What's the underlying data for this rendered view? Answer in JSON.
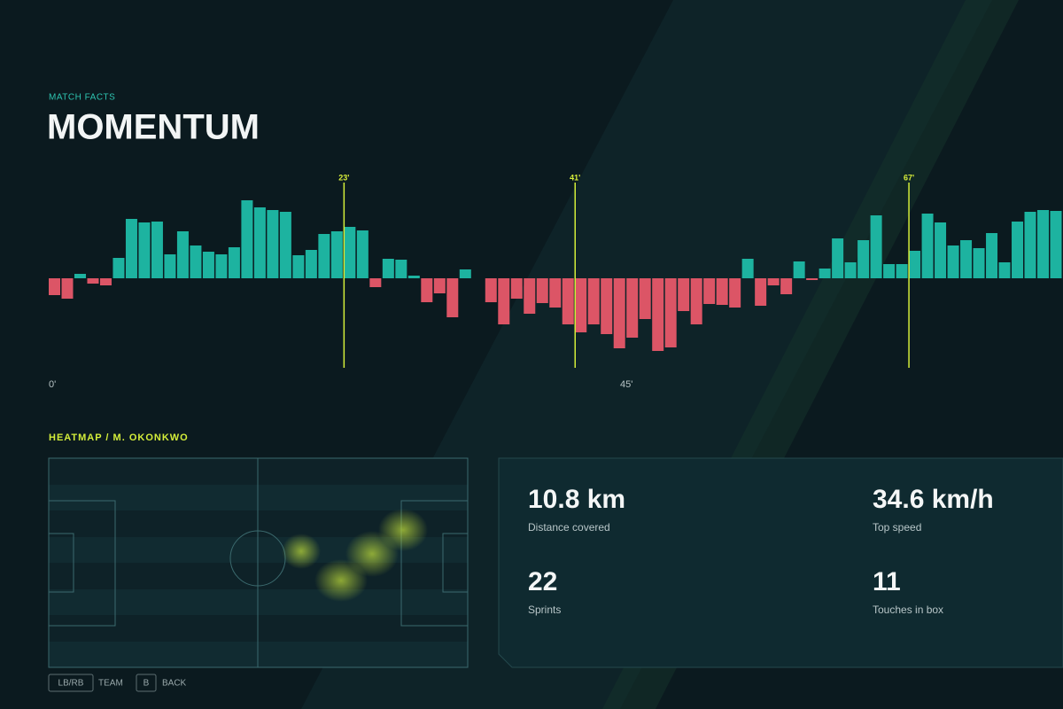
{
  "header": {
    "kicker": "MATCH FACTS",
    "title": "MOMENTUM"
  },
  "chart_data": {
    "type": "bar",
    "x": [
      0,
      1,
      2,
      3,
      4,
      5,
      6,
      7,
      8,
      9,
      10,
      11,
      12,
      13,
      14,
      15,
      16,
      17,
      18,
      19,
      20,
      21,
      22,
      23,
      24,
      25,
      26,
      27,
      28,
      29,
      30,
      31,
      32,
      33,
      34,
      35,
      36,
      37,
      38,
      39,
      40,
      41,
      42,
      43,
      44,
      45,
      46,
      47,
      48,
      49,
      50,
      51,
      52,
      53,
      54,
      55,
      56,
      57,
      58,
      59,
      60,
      61,
      62,
      63,
      64,
      65,
      66,
      67,
      68,
      69,
      70,
      71,
      72,
      73,
      74,
      75,
      76,
      77,
      78
    ],
    "values": [
      -19,
      -23,
      5,
      -6,
      -8,
      23,
      67,
      63,
      64,
      27,
      53,
      37,
      30,
      27,
      35,
      88,
      80,
      77,
      75,
      26,
      32,
      50,
      53,
      58,
      54,
      -10,
      22,
      21,
      3,
      -27,
      -17,
      -44,
      10,
      0,
      -27,
      -52,
      -23,
      -40,
      -28,
      -33,
      -52,
      -61,
      -52,
      -63,
      -79,
      -67,
      -46,
      -82,
      -78,
      -37,
      -52,
      -29,
      -30,
      -33,
      22,
      -31,
      -8,
      -18,
      19,
      -2,
      11,
      45,
      18,
      43,
      71,
      16,
      16,
      31,
      73,
      63,
      37,
      43,
      34,
      51,
      18,
      64,
      75,
      77,
      76
    ],
    "positive_color": "#1db3a0",
    "negative_color": "#dc5566",
    "xlim": [
      0,
      79
    ],
    "ylim": [
      -100,
      100
    ],
    "xticks": [
      {
        "value": 0,
        "label": "0'"
      },
      {
        "value": 45,
        "label": "45'"
      }
    ],
    "markers": [
      {
        "value": 23,
        "label": "23'"
      },
      {
        "value": 41,
        "label": "41'"
      },
      {
        "value": 67,
        "label": "67'"
      }
    ],
    "marker_color": "#d4ee3a"
  },
  "heatmap": {
    "title": "HEATMAP / M. OKONKWO"
  },
  "stats": [
    {
      "value": "10.8 km",
      "label": "Distance covered"
    },
    {
      "value": "34.6 km/h",
      "label": "Top speed"
    },
    {
      "value": "22",
      "label": "Sprints"
    },
    {
      "value": "11",
      "label": "Touches in box"
    }
  ],
  "footer": [
    {
      "key": "LB/RB",
      "label": "TEAM"
    },
    {
      "key": "B",
      "label": "BACK"
    }
  ]
}
